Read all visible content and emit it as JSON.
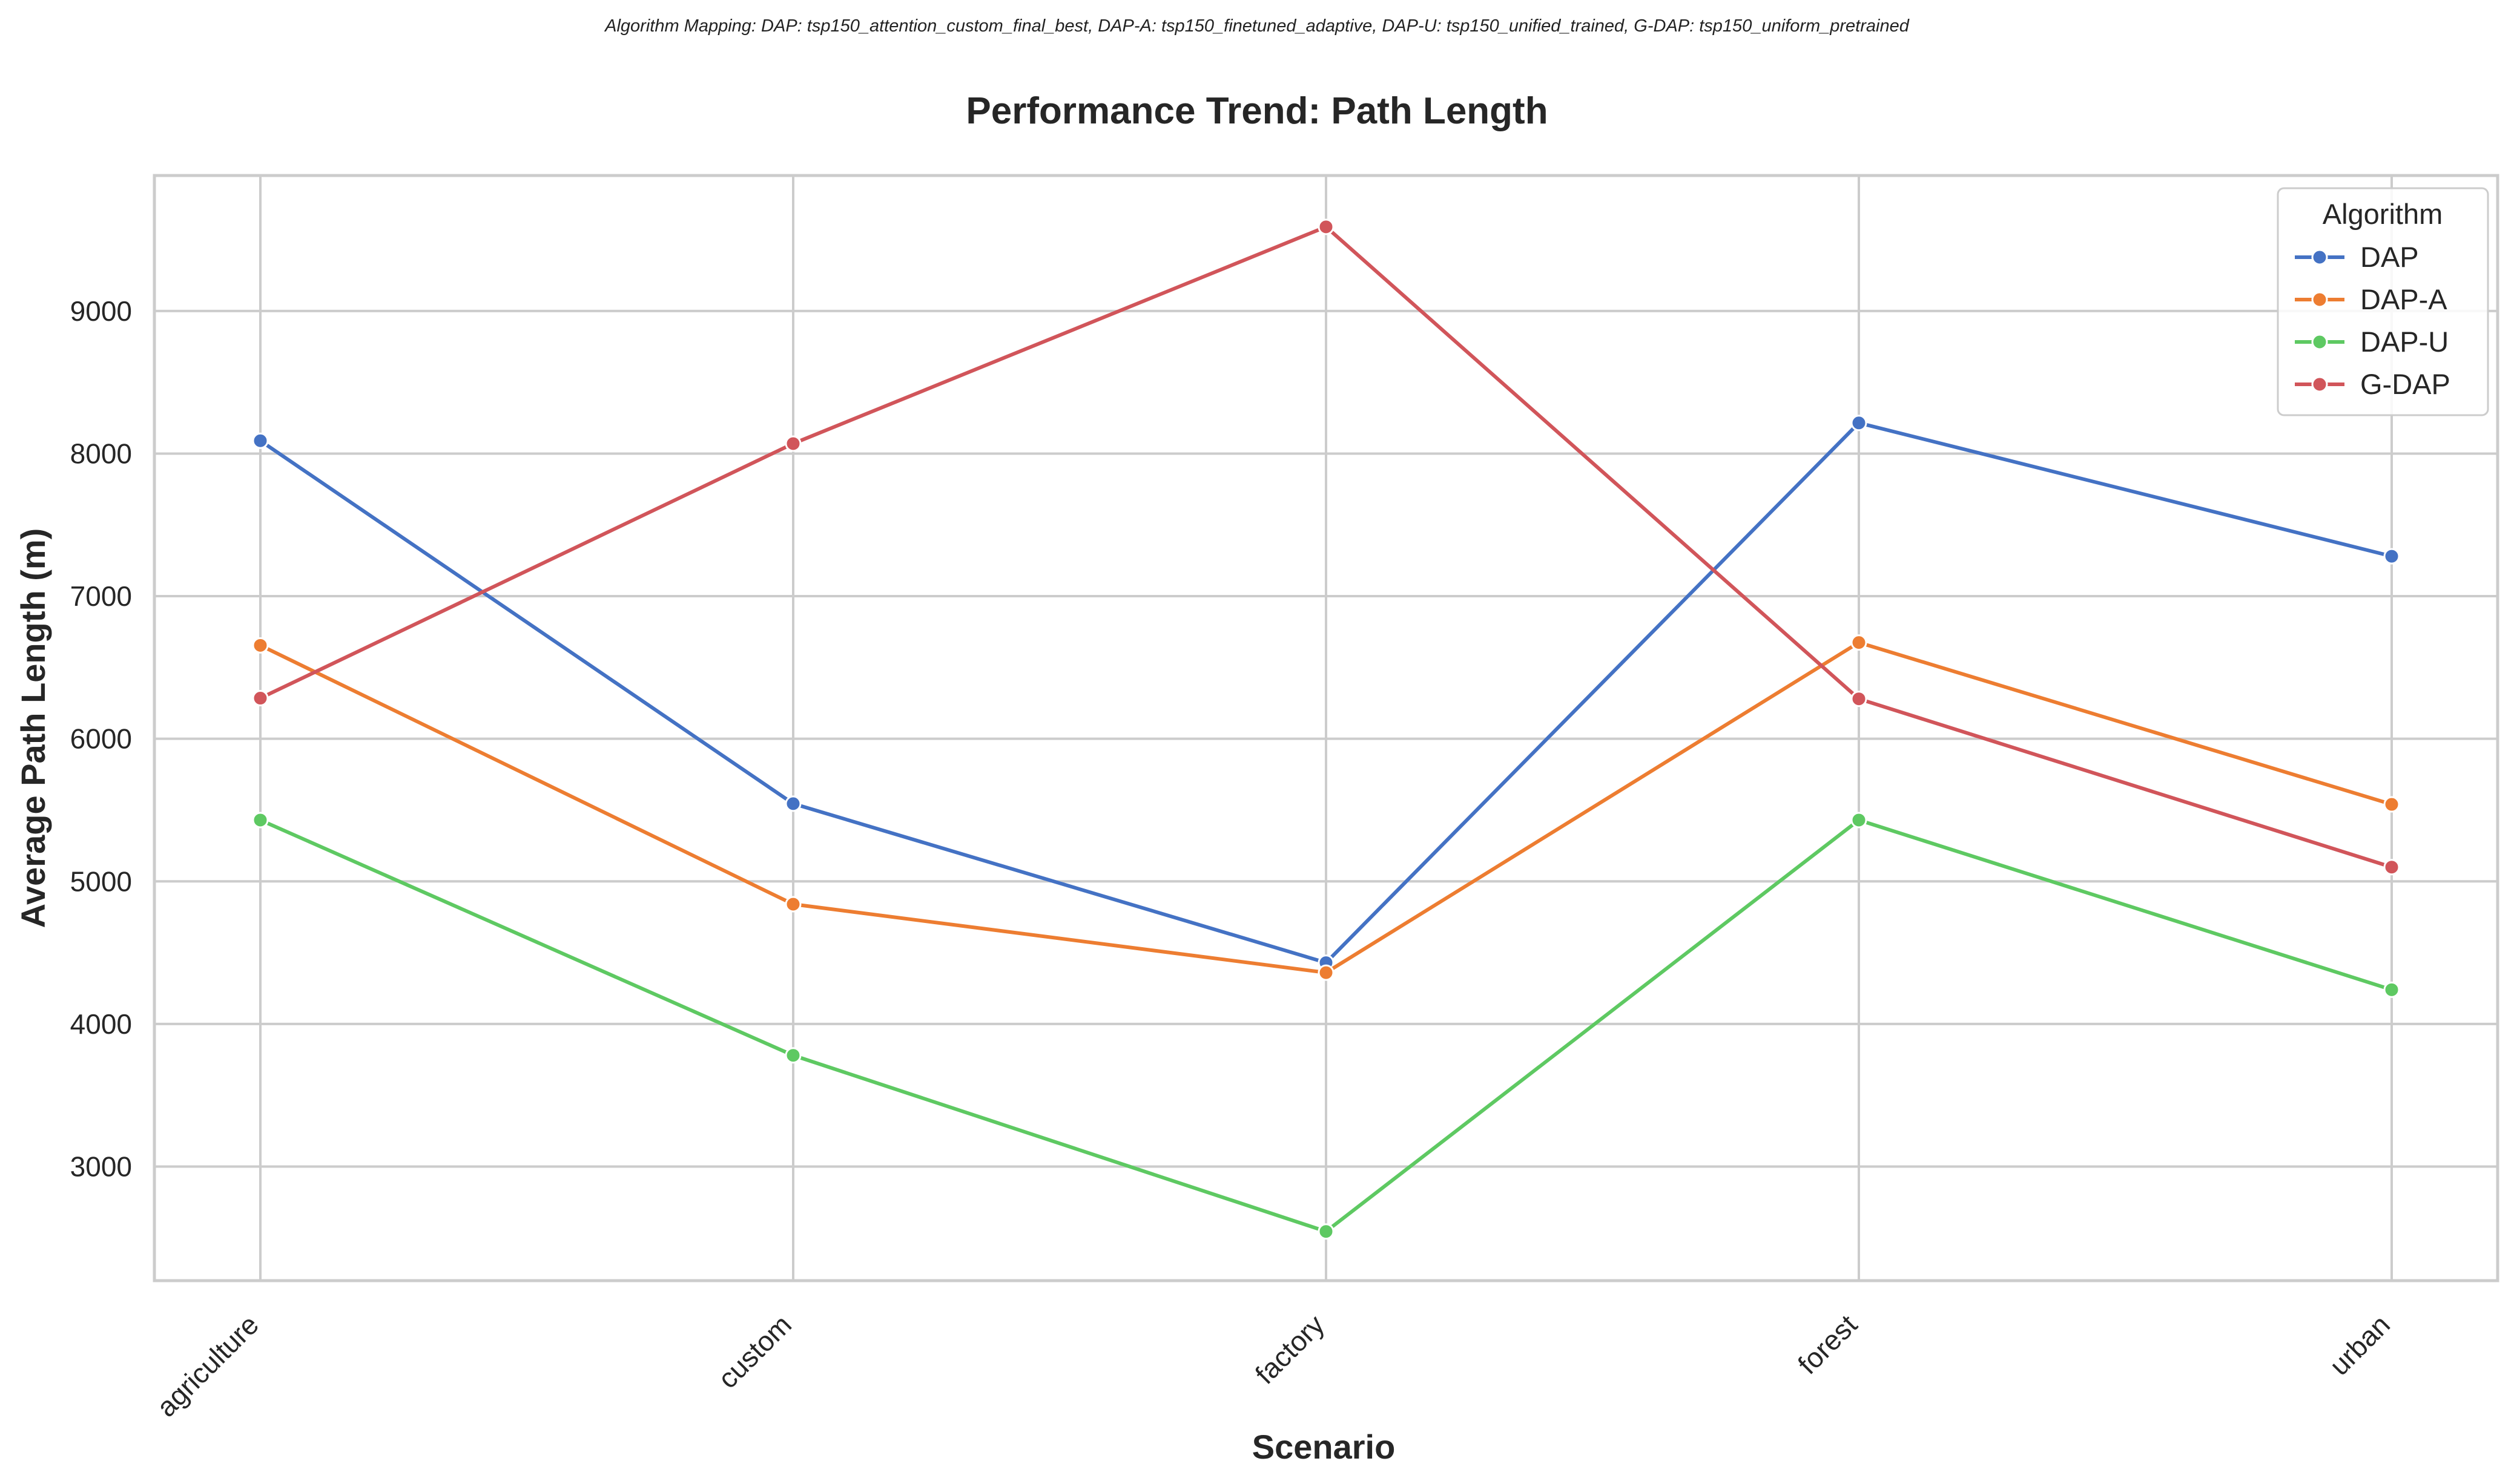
{
  "page": {
    "mapping_note": "Algorithm Mapping: DAP: tsp150_attention_custom_final_best, DAP-A: tsp150_finetuned_adaptive, DAP-U: tsp150_unified_trained, G-DAP: tsp150_uniform_pretrained"
  },
  "chart_data": {
    "type": "line",
    "title": "Performance Trend: Path Length",
    "xlabel": "Scenario",
    "ylabel": "Average Path Length (m)",
    "categories": [
      "agriculture",
      "custom",
      "factory",
      "forest",
      "urban"
    ],
    "ylim": [
      2200,
      9950
    ],
    "yticks": [
      3000,
      4000,
      5000,
      6000,
      7000,
      8000,
      9000
    ],
    "ytick_labels": [
      "3000",
      "4000",
      "5000",
      "6000",
      "7000",
      "8000",
      "9000"
    ],
    "grid": true,
    "legend": {
      "title": "Algorithm",
      "placement": "top-right"
    },
    "series": [
      {
        "name": "DAP",
        "color": "#4472c4",
        "values": [
          8090,
          5545,
          4430,
          8215,
          7280
        ]
      },
      {
        "name": "DAP-A",
        "color": "#ed7d31",
        "values": [
          6655,
          4840,
          4360,
          6675,
          5540
        ]
      },
      {
        "name": "DAP-U",
        "color": "#5ec962",
        "values": [
          5430,
          3780,
          2545,
          5430,
          4240
        ]
      },
      {
        "name": "G-DAP",
        "color": "#d1555a",
        "values": [
          6285,
          8070,
          9590,
          6280,
          5100
        ]
      }
    ]
  }
}
